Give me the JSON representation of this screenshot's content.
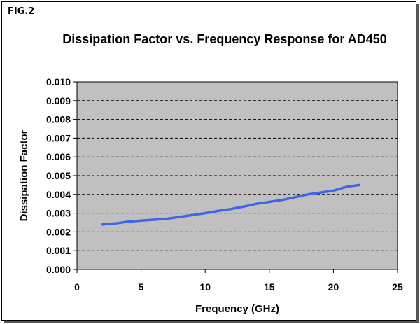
{
  "figure": {
    "label": "FIG.2"
  },
  "chart_data": {
    "type": "line",
    "title": "Dissipation Factor vs. Frequency Response for AD450",
    "xlabel": "Frequency (GHz)",
    "ylabel": "Dissipation Factor",
    "xlim": [
      0,
      25
    ],
    "ylim": [
      0.0,
      0.01
    ],
    "x_ticks": [
      0,
      5,
      10,
      15,
      20,
      25
    ],
    "y_ticks": [
      0.0,
      0.001,
      0.002,
      0.003,
      0.004,
      0.005,
      0.006,
      0.007,
      0.008,
      0.009,
      0.01
    ],
    "x_tick_labels": [
      "0",
      "5",
      "10",
      "15",
      "20",
      "25"
    ],
    "y_tick_labels": [
      "0.000",
      "0.001",
      "0.002",
      "0.003",
      "0.004",
      "0.005",
      "0.006",
      "0.007",
      "0.008",
      "0.009",
      "0.010"
    ],
    "grid": "horizontal dashed",
    "legend": "none",
    "plot_background": "#c0c0c0",
    "series": [
      {
        "color": "#3f66e6",
        "x": [
          2,
          3,
          4,
          5,
          6,
          7,
          8,
          9,
          10,
          11,
          12,
          13,
          14,
          15,
          16,
          17,
          18,
          19,
          20,
          21,
          22
        ],
        "y": [
          0.0024,
          0.00245,
          0.00255,
          0.0026,
          0.00265,
          0.0027,
          0.0028,
          0.0029,
          0.003,
          0.00312,
          0.00322,
          0.00335,
          0.0035,
          0.0036,
          0.0037,
          0.00385,
          0.004,
          0.0041,
          0.0042,
          0.0044,
          0.0045
        ]
      }
    ]
  }
}
